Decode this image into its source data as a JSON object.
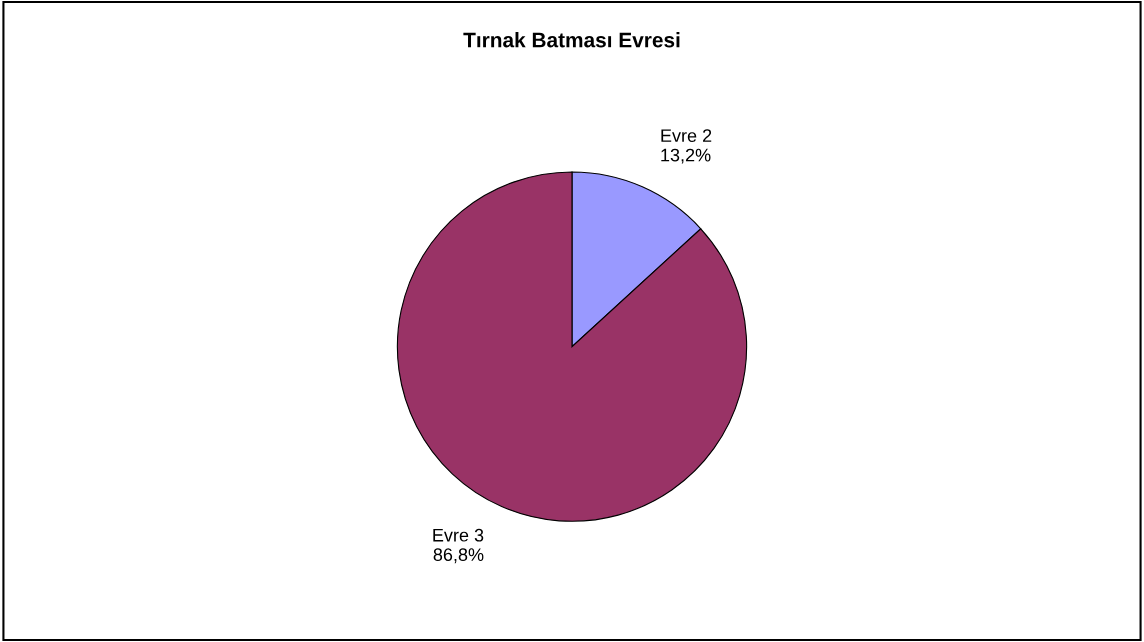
{
  "chart_data": {
    "type": "pie",
    "title": "Tırnak Batması Evresi",
    "categories": [
      "Evre 2",
      "Evre 3"
    ],
    "values": [
      13.2,
      86.8
    ],
    "colors": [
      "#9999ff",
      "#993366"
    ],
    "value_labels": [
      "13,2%",
      "86,8%"
    ],
    "legend": false
  }
}
